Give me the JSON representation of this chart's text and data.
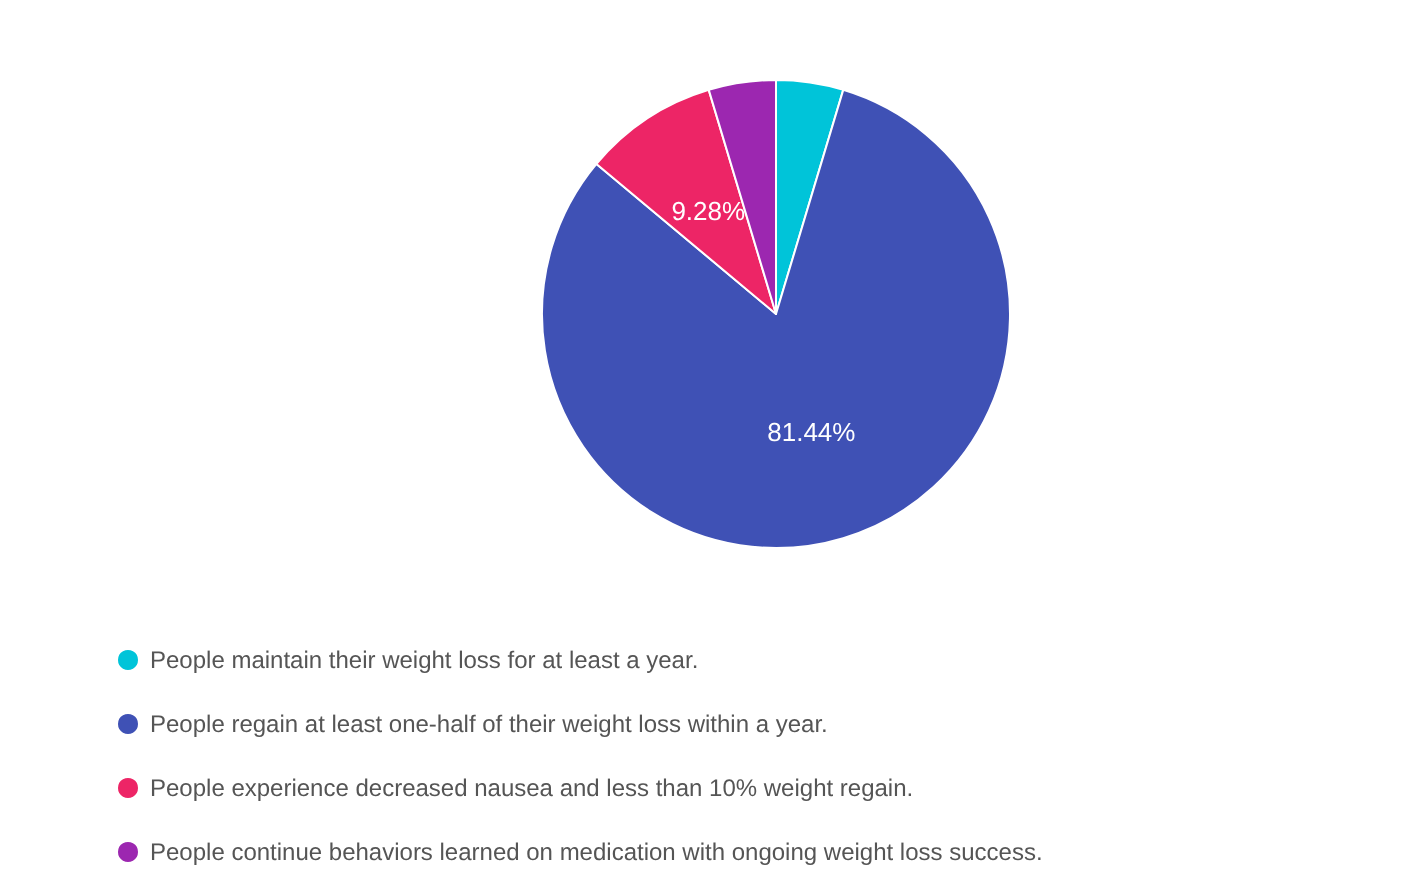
{
  "chart_data": {
    "type": "pie",
    "categories": [
      "People maintain their weight loss for at least a year.",
      "People regain at least one-half of their weight loss within a year.",
      "People experience decreased nausea and less than 10% weight regain.",
      "People continue behaviors learned on medication with ongoing weight loss success."
    ],
    "values": [
      4.64,
      81.44,
      9.28,
      4.64
    ],
    "colors": [
      "#00c4d9",
      "#3f51b5",
      "#ed2566",
      "#9c27b0"
    ],
    "value_labels": [
      null,
      "81.44%",
      "9.28%",
      null
    ],
    "legend": "bottom left"
  }
}
